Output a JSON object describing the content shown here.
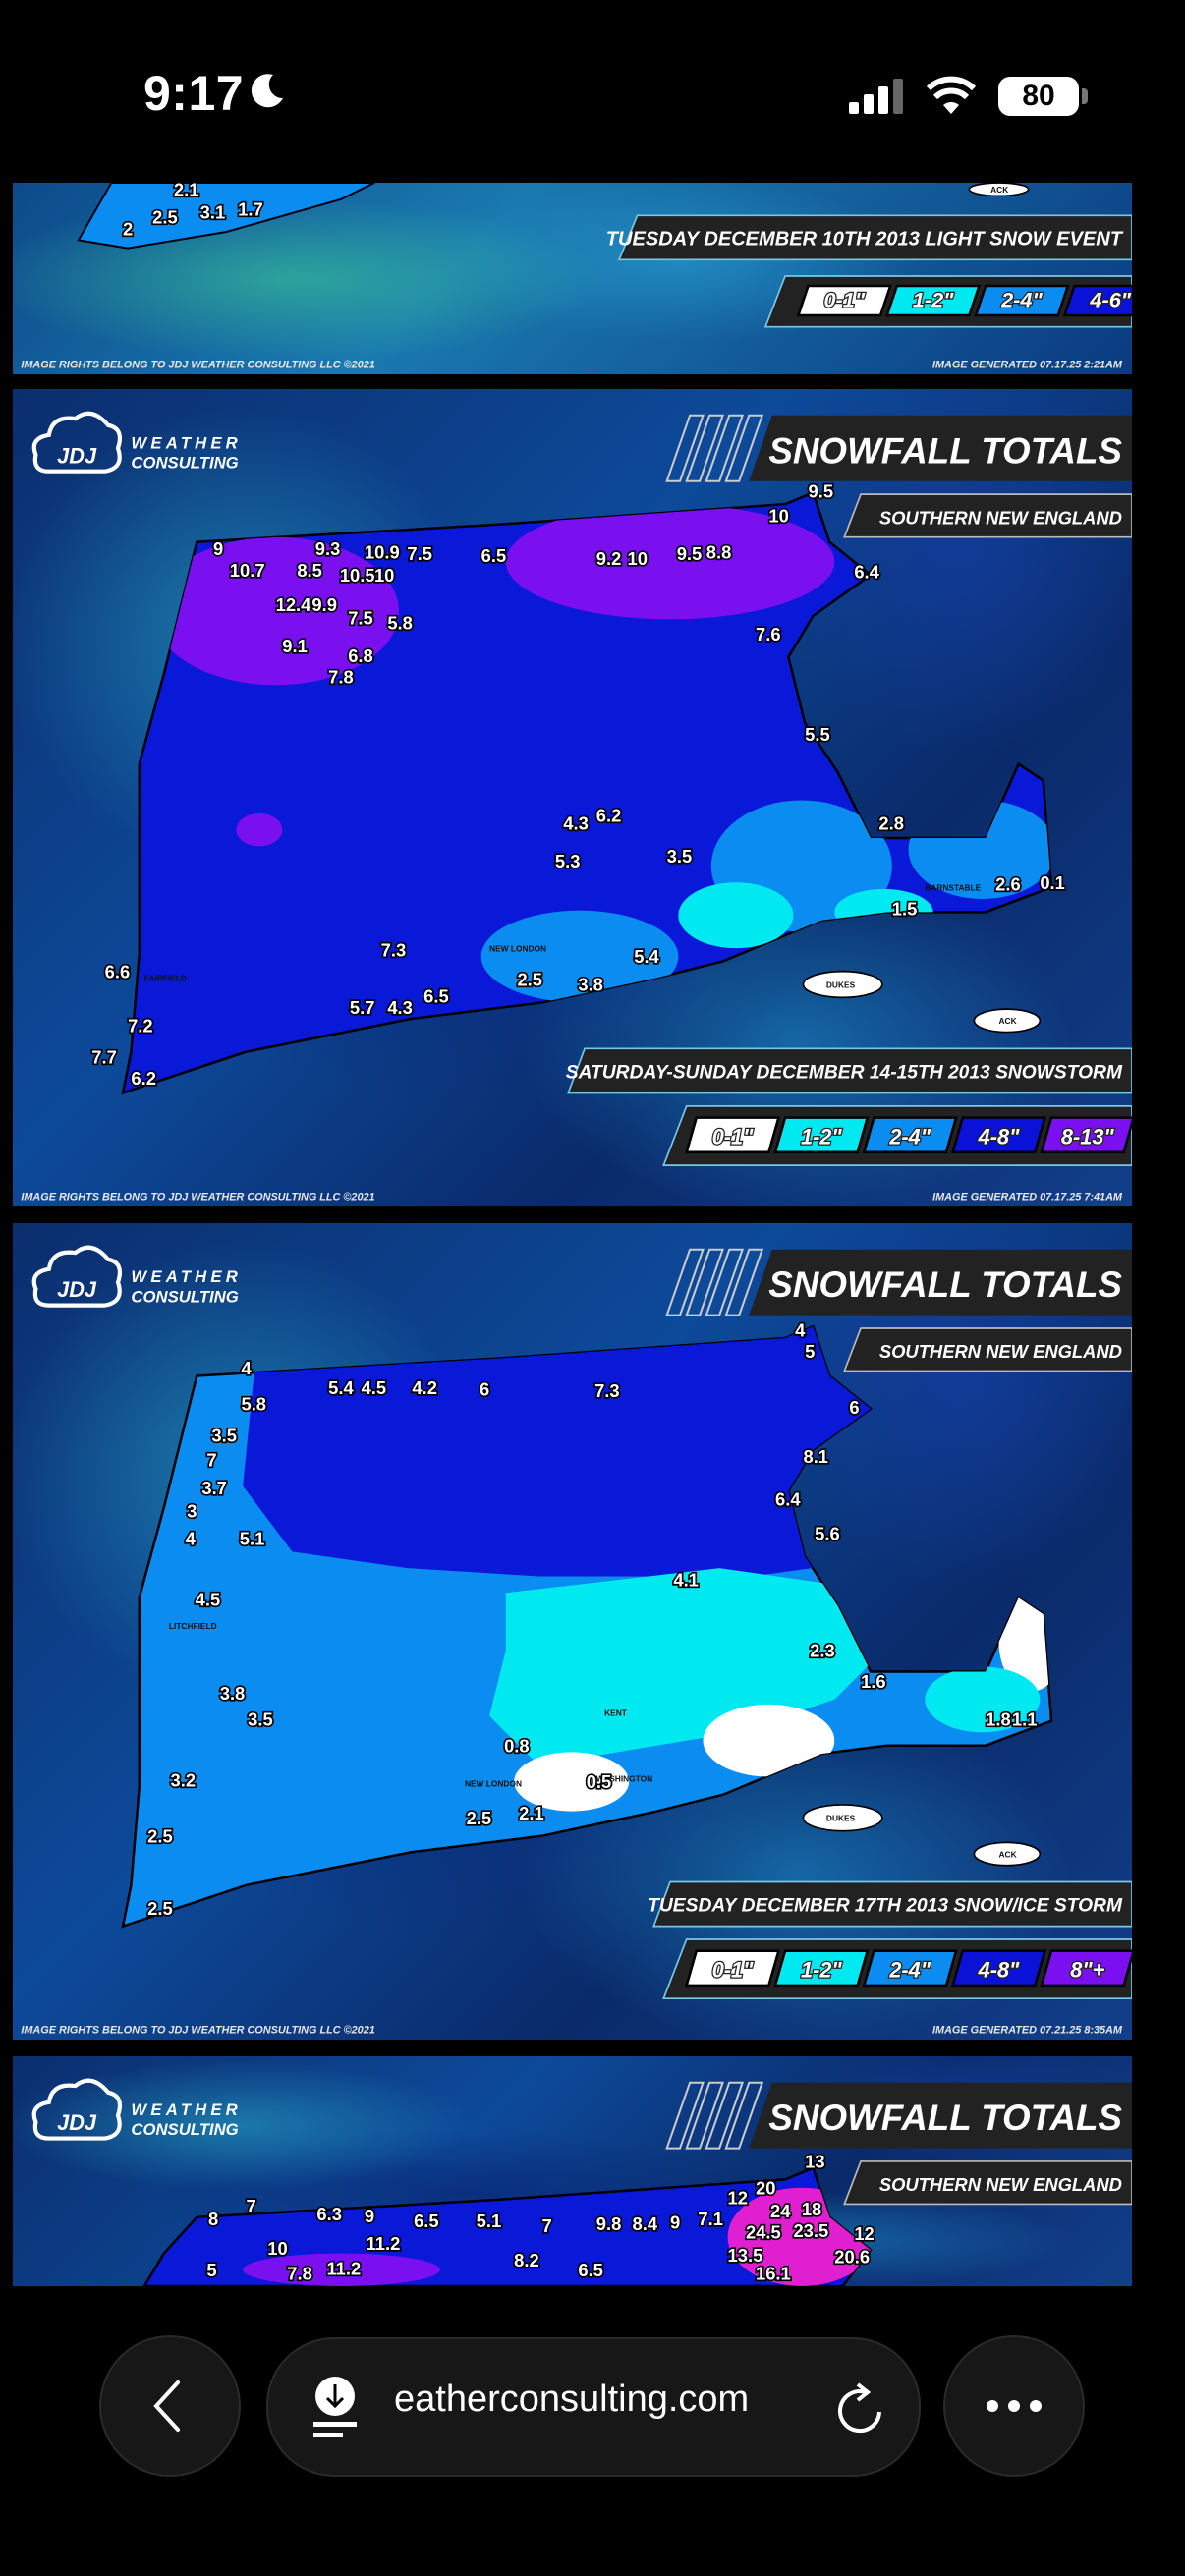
{
  "status_bar": {
    "time": "9:17",
    "battery": "80",
    "icons": [
      "moon-icon",
      "cellular-signal-icon",
      "wifi-icon",
      "battery-icon"
    ]
  },
  "brand": {
    "line1": "WEATHER",
    "line2": "CONSULTING",
    "logo_letters": "JDJ"
  },
  "colors": {
    "white": "#ffffff",
    "cyan": "#00e8f0",
    "light_blue": "#0a8cf0",
    "blue": "#0a12d8",
    "purple": "#7a10f0",
    "pink": "#e020d0"
  },
  "panels": [
    {
      "event": "TUESDAY DECEMBER 10TH 2013 LIGHT SNOW EVENT",
      "legend": [
        "0-1\"",
        "1-2\"",
        "2-4\"",
        "4-6\""
      ],
      "rights": "IMAGE RIGHTS BELONG TO JDJ WEATHER CONSULTING LLC ©2021",
      "generated": "IMAGE GENERATED 07.17.25 2:21AM",
      "labels": [
        "ACK"
      ],
      "values": [
        "2.1",
        "2.5",
        "3.1",
        "1.7",
        "2"
      ]
    },
    {
      "title": "SNOWFALL TOTALS",
      "subtitle": "SOUTHERN NEW ENGLAND",
      "event": "SATURDAY-SUNDAY DECEMBER 14-15TH 2013 SNOWSTORM",
      "legend": [
        "0-1\"",
        "1-2\"",
        "2-4\"",
        "4-8\"",
        "8-13\""
      ],
      "rights": "IMAGE RIGHTS BELONG TO JDJ WEATHER CONSULTING LLC ©2021",
      "generated": "IMAGE GENERATED 07.17.25 7:41AM",
      "labels": [
        "DUKES",
        "ACK",
        "NEW LONDON",
        "FAIRFIELD",
        "BARNSTABLE"
      ],
      "values": [
        "9",
        "9.3",
        "10.9",
        "7.5",
        "6.5",
        "10.7",
        "8.5",
        "10.5",
        "10",
        "12.4",
        "9.9",
        "7.5",
        "5.8",
        "9.1",
        "6.8",
        "7.8",
        "9.2",
        "10",
        "9.5",
        "8.8",
        "9.5",
        "10",
        "6.4",
        "7.6",
        "5.5",
        "4.3",
        "6.2",
        "5.3",
        "3.5",
        "2.8",
        "2.6",
        "0.1",
        "1.5",
        "2.5",
        "3.8",
        "5.4",
        "6.6",
        "7.2",
        "6.2",
        "7.7",
        "7.3",
        "5.7",
        "4.3",
        "6.5"
      ]
    },
    {
      "title": "SNOWFALL TOTALS",
      "subtitle": "SOUTHERN NEW ENGLAND",
      "event": "TUESDAY DECEMBER 17TH 2013 SNOW/ICE STORM",
      "legend": [
        "0-1\"",
        "1-2\"",
        "2-4\"",
        "4-8\"",
        "8\"+"
      ],
      "rights": "IMAGE RIGHTS BELONG TO JDJ WEATHER CONSULTING LLC ©2021",
      "generated": "IMAGE GENERATED 07.21.25 8:35AM",
      "labels": [
        "LITCHFIELD",
        "NEW LONDON",
        "WASHINGTON",
        "KENT",
        "DUKES",
        "ACK"
      ],
      "values": [
        "4",
        "5.8",
        "5.4",
        "4.5",
        "4.2",
        "6",
        "7.3",
        "4",
        "5",
        "6",
        "3.5",
        "7",
        "3.7",
        "3",
        "4",
        "5.1",
        "4.5",
        "3.8",
        "3.5",
        "3.2",
        "2.5",
        "2.5",
        "0.8",
        "0.5",
        "2.1",
        "2.5",
        "1.6",
        "1.8",
        "1.1",
        "2.3",
        "6.4",
        "5.6",
        "8.1",
        "4.1"
      ]
    },
    {
      "title": "SNOWFALL TOTALS",
      "subtitle": "SOUTHERN NEW ENGLAND",
      "values": [
        "8",
        "7",
        "6.3",
        "9",
        "6.5",
        "5.1",
        "11.2",
        "10",
        "7.8",
        "11.2",
        "7",
        "9.8",
        "8.4",
        "9",
        "7.1",
        "12",
        "20",
        "13",
        "24",
        "18",
        "12",
        "24.5",
        "23.5",
        "20.6",
        "13.5",
        "16.1",
        "8.2",
        "6.5",
        "5"
      ]
    }
  ],
  "browser": {
    "url": "eatherconsulting.com",
    "back_icon": "chevron-left-icon",
    "download_icon": "download-icon",
    "reload_icon": "reload-icon",
    "more_icon": "more-icon"
  }
}
